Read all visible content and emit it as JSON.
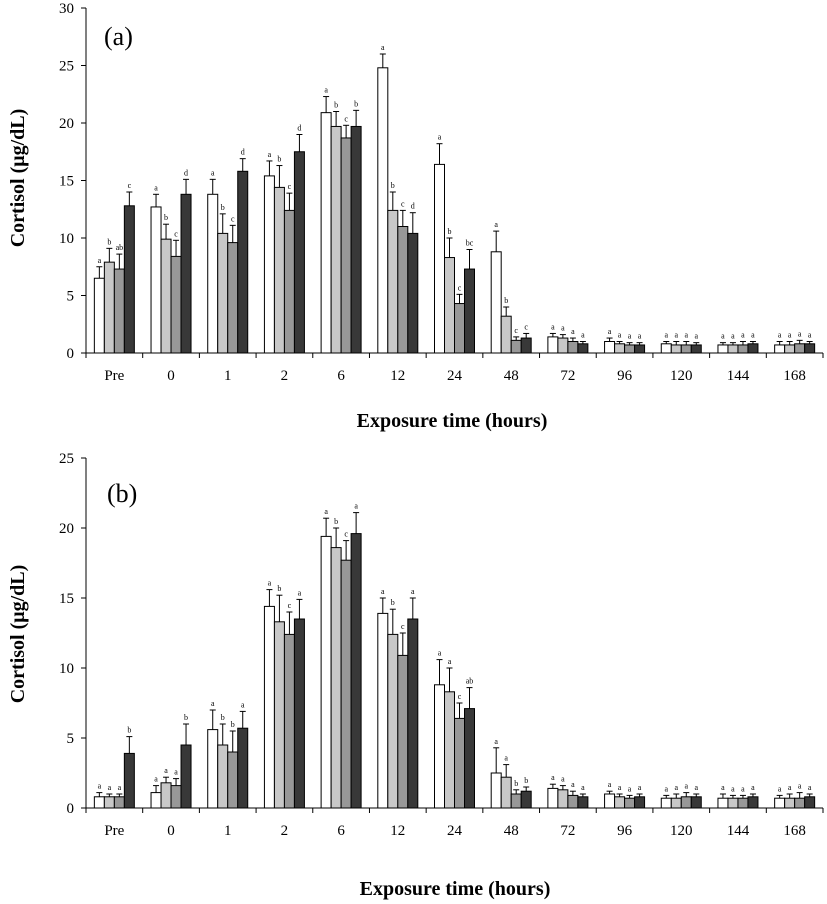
{
  "colors": {
    "series": [
      "#ffffff",
      "#c8c8c8",
      "#989898",
      "#383838"
    ],
    "stroke": "#000000"
  },
  "chart_data": [
    {
      "type": "bar",
      "panel_label": "(a)",
      "xlabel": "Exposure time (hours)",
      "ylabel": "Cortisol (μg/dL)",
      "ylim": [
        0,
        30
      ],
      "yticks": [
        "0",
        "5",
        "10",
        "15",
        "20",
        "25",
        "30"
      ],
      "categories": [
        "Pre",
        "0",
        "1",
        "2",
        "6",
        "12",
        "24",
        "48",
        "72",
        "96",
        "120",
        "144",
        "168"
      ],
      "series": [
        {
          "values": [
            6.5,
            12.7,
            13.8,
            15.4,
            20.9,
            24.8,
            16.4,
            8.8,
            1.4,
            1.0,
            0.8,
            0.7,
            0.7
          ],
          "errors": [
            1.0,
            1.1,
            1.3,
            1.3,
            1.4,
            1.2,
            1.8,
            1.8,
            0.3,
            0.3,
            0.2,
            0.2,
            0.3
          ],
          "labels": [
            "a",
            "a",
            "a",
            "a",
            "a",
            "a",
            "a",
            "a",
            "a",
            "a",
            "a",
            "a",
            "a"
          ]
        },
        {
          "values": [
            7.9,
            9.9,
            10.4,
            14.4,
            19.7,
            12.4,
            8.3,
            3.2,
            1.3,
            0.8,
            0.7,
            0.7,
            0.7
          ],
          "errors": [
            1.2,
            1.3,
            1.7,
            1.9,
            1.3,
            1.6,
            1.7,
            0.8,
            0.3,
            0.2,
            0.3,
            0.2,
            0.3
          ],
          "labels": [
            "b",
            "b",
            "b",
            "b",
            "b",
            "b",
            "b",
            "b",
            "a",
            "a",
            "a",
            "a",
            "a"
          ]
        },
        {
          "values": [
            7.3,
            8.4,
            9.6,
            12.4,
            18.7,
            11.0,
            4.3,
            1.1,
            1.0,
            0.7,
            0.7,
            0.7,
            0.8
          ],
          "errors": [
            1.3,
            1.4,
            1.5,
            1.5,
            1.1,
            1.4,
            0.8,
            0.3,
            0.3,
            0.2,
            0.3,
            0.3,
            0.3
          ],
          "labels": [
            "ab",
            "c",
            "c",
            "c",
            "c",
            "c",
            "c",
            "c",
            "a",
            "a",
            "a",
            "a",
            "a"
          ]
        },
        {
          "values": [
            12.8,
            13.8,
            15.8,
            17.5,
            19.7,
            10.4,
            7.3,
            1.3,
            0.8,
            0.7,
            0.7,
            0.8,
            0.8
          ],
          "errors": [
            1.2,
            1.3,
            1.1,
            1.5,
            1.4,
            1.8,
            1.7,
            0.4,
            0.2,
            0.2,
            0.2,
            0.2,
            0.2
          ],
          "labels": [
            "c",
            "d",
            "d",
            "d",
            "b",
            "d",
            "bc",
            "c",
            "a",
            "a",
            "a",
            "a",
            "a"
          ]
        }
      ]
    },
    {
      "type": "bar",
      "panel_label": "(b)",
      "xlabel": "Exposure time (hours)",
      "ylabel": "Cortisol (μg/dL)",
      "ylim": [
        0,
        25
      ],
      "yticks": [
        "0",
        "5",
        "10",
        "15",
        "20",
        "25"
      ],
      "categories": [
        "Pre",
        "0",
        "1",
        "2",
        "6",
        "12",
        "24",
        "48",
        "72",
        "96",
        "120",
        "144",
        "168"
      ],
      "series": [
        {
          "values": [
            0.8,
            1.1,
            5.6,
            14.4,
            19.4,
            13.9,
            8.8,
            2.5,
            1.4,
            1.0,
            0.7,
            0.7,
            0.7
          ],
          "errors": [
            0.3,
            0.5,
            1.4,
            1.2,
            1.3,
            1.1,
            1.8,
            1.8,
            0.3,
            0.2,
            0.2,
            0.3,
            0.2
          ],
          "labels": [
            "a",
            "a",
            "a",
            "a",
            "a",
            "a",
            "a",
            "a",
            "a",
            "a",
            "a",
            "a",
            "a"
          ]
        },
        {
          "values": [
            0.8,
            1.8,
            4.5,
            13.3,
            18.6,
            12.4,
            8.3,
            2.2,
            1.3,
            0.8,
            0.7,
            0.7,
            0.7
          ],
          "errors": [
            0.2,
            0.4,
            1.5,
            1.9,
            1.4,
            1.8,
            1.7,
            0.9,
            0.3,
            0.2,
            0.3,
            0.2,
            0.3
          ],
          "labels": [
            "a",
            "a",
            "b",
            "b",
            "b",
            "b",
            "a",
            "a",
            "a",
            "a",
            "a",
            "a",
            "a"
          ]
        },
        {
          "values": [
            0.8,
            1.6,
            4.0,
            12.4,
            17.7,
            10.9,
            6.4,
            1.0,
            0.9,
            0.7,
            0.8,
            0.7,
            0.7
          ],
          "errors": [
            0.2,
            0.5,
            1.5,
            1.6,
            1.4,
            1.6,
            1.1,
            0.3,
            0.3,
            0.2,
            0.3,
            0.2,
            0.4
          ],
          "labels": [
            "a",
            "a",
            "b",
            "c",
            "c",
            "c",
            "c",
            "b",
            "a",
            "a",
            "a",
            "a",
            "a"
          ]
        },
        {
          "values": [
            3.9,
            4.5,
            5.7,
            13.5,
            19.6,
            13.5,
            7.1,
            1.2,
            0.8,
            0.8,
            0.8,
            0.8,
            0.8
          ],
          "errors": [
            1.2,
            1.5,
            1.2,
            1.4,
            1.5,
            1.5,
            1.5,
            0.3,
            0.2,
            0.2,
            0.2,
            0.2,
            0.2
          ],
          "labels": [
            "b",
            "b",
            "a",
            "a",
            "a",
            "a",
            "ab",
            "b",
            "a",
            "a",
            "a",
            "a",
            "a"
          ]
        }
      ]
    }
  ]
}
